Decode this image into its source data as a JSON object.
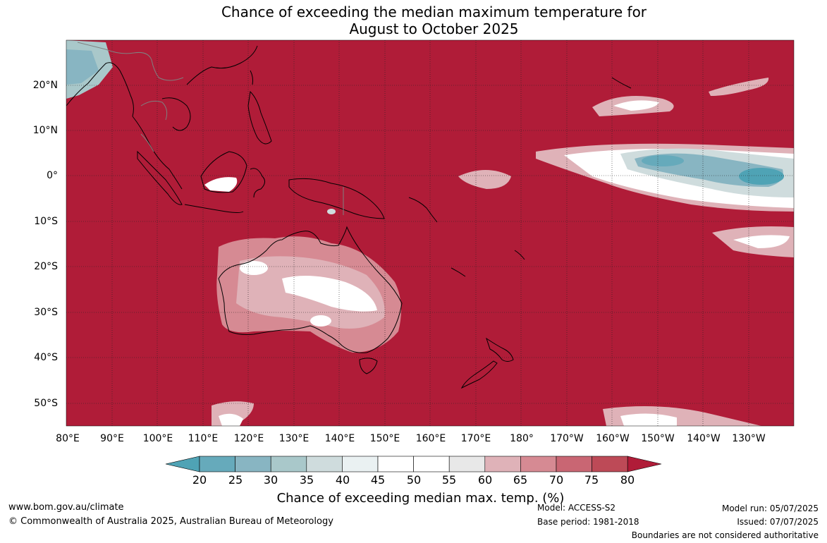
{
  "title": {
    "line1": "Chance of exceeding the median maximum temperature for",
    "line2": "August to October 2025"
  },
  "map": {
    "lat_labels": [
      "20°N",
      "10°N",
      "0°",
      "10°S",
      "20°S",
      "30°S",
      "40°S",
      "50°S"
    ],
    "lon_labels": [
      "80°E",
      "90°E",
      "100°E",
      "110°E",
      "120°E",
      "130°E",
      "140°E",
      "150°E",
      "160°E",
      "170°E",
      "180°",
      "170°W",
      "160°W",
      "150°W",
      "140°W",
      "130°W"
    ],
    "background_color": "#b01c38",
    "land_outline_color": "#000000",
    "country_border_color": "#808080"
  },
  "colorbar": {
    "labels": [
      "20",
      "25",
      "30",
      "35",
      "40",
      "45",
      "50",
      "55",
      "60",
      "65",
      "70",
      "75",
      "80"
    ],
    "colors": [
      "#4fa3b5",
      "#66aabb",
      "#88b5c2",
      "#a9c8ca",
      "#cfdcdd",
      "#eaf1f2",
      "#ffffff",
      "#ffffff",
      "#e8e8e8",
      "#dfb2b8",
      "#d68a93",
      "#c96673",
      "#bd4a57",
      "#b01c38"
    ],
    "title": "Chance of exceeding median max. temp. (%)"
  },
  "footer": {
    "website": "www.bom.gov.au/climate",
    "copyright": "© Commonwealth of Australia 2025, Australian Bureau of Meteorology",
    "model": "Model: ACCESS-S2",
    "base_period": "Base period: 1981-2018",
    "model_run": "Model run: 05/07/2025",
    "issued": "Issued: 07/07/2025",
    "disclaimer": "Boundaries are not considered authoritative"
  }
}
